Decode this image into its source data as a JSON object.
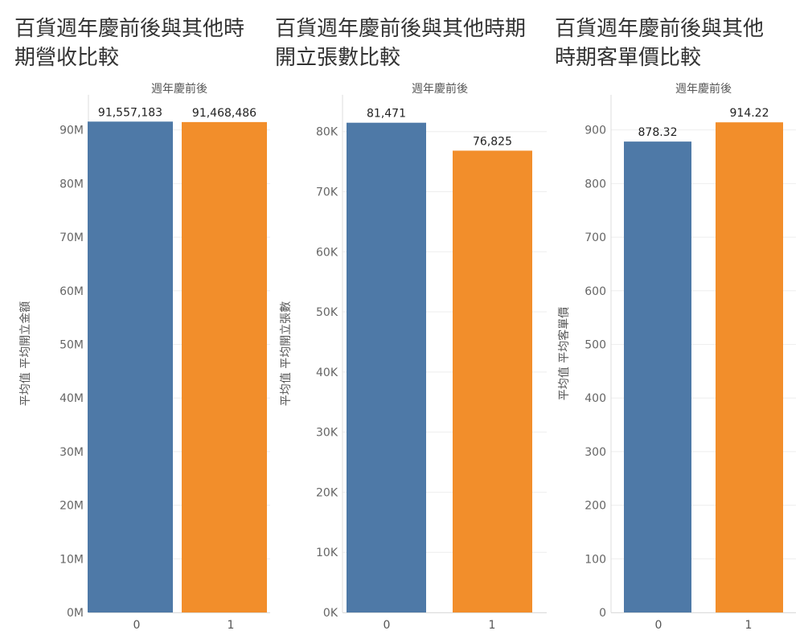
{
  "colors": {
    "series0": "#4e79a7",
    "series1": "#f28e2b",
    "grid": "#eeeeee",
    "axis": "#dddddd"
  },
  "chart_data": [
    {
      "type": "bar",
      "title": "百貨週年慶前後與其他時期營收比較",
      "header": "週年慶前後",
      "ylabel": "平均值 平均開立金額",
      "categories": [
        "0",
        "1"
      ],
      "values": [
        91557183,
        91468486
      ],
      "value_labels": [
        "91,557,183",
        "91,468,486"
      ],
      "ylim": [
        0,
        92500000
      ],
      "yticks": [
        0,
        10000000,
        20000000,
        30000000,
        40000000,
        50000000,
        60000000,
        70000000,
        80000000,
        90000000
      ],
      "ytick_labels": [
        "0M",
        "10M",
        "20M",
        "30M",
        "40M",
        "50M",
        "60M",
        "70M",
        "80M",
        "90M"
      ],
      "grid": true
    },
    {
      "type": "bar",
      "title": "百貨週年慶前後與其他時期開立張數比較",
      "header": "週年慶前後",
      "ylabel": "平均值 平均開立張數",
      "categories": [
        "0",
        "1"
      ],
      "values": [
        81471,
        76825
      ],
      "value_labels": [
        "81,471",
        "76,825"
      ],
      "ylim": [
        0,
        82500
      ],
      "yticks": [
        0,
        10000,
        20000,
        30000,
        40000,
        50000,
        60000,
        70000,
        80000
      ],
      "ytick_labels": [
        "0K",
        "10K",
        "20K",
        "30K",
        "40K",
        "50K",
        "60K",
        "70K",
        "80K"
      ],
      "grid": true
    },
    {
      "type": "bar",
      "title": "百貨週年慶前後與其他時期客單價比較",
      "header": "週年慶前後",
      "ylabel": "平均值 平均客單價",
      "categories": [
        "0",
        "1"
      ],
      "values": [
        878.32,
        914.22
      ],
      "value_labels": [
        "878.32",
        "914.22"
      ],
      "ylim": [
        0,
        925
      ],
      "yticks": [
        0,
        100,
        200,
        300,
        400,
        500,
        600,
        700,
        800,
        900
      ],
      "ytick_labels": [
        "0",
        "100",
        "200",
        "300",
        "400",
        "500",
        "600",
        "700",
        "800",
        "900"
      ],
      "grid": true
    }
  ]
}
